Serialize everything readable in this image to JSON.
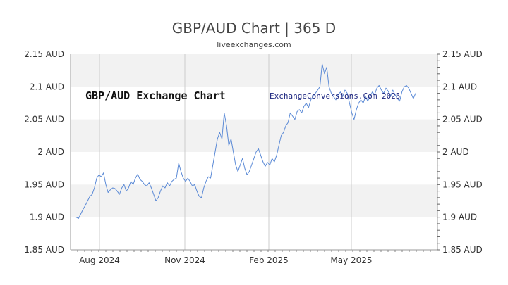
{
  "title": "GBP/AUD Chart | 365 D",
  "subtitle": "liveexchanges.com",
  "watermark_left": "GBP/AUD Exchange Chart",
  "watermark_right": "ExchangeConversions.Com 2025",
  "colors": {
    "line": "#5b8ad6",
    "band": "#f2f2f2",
    "grid": "#cccccc",
    "axis": "#999999"
  },
  "chart_data": {
    "type": "line",
    "title": "GBP/AUD Chart | 365 D",
    "xlabel": "",
    "ylabel": "",
    "ylim": [
      1.85,
      2.15
    ],
    "yticks": [
      1.85,
      1.9,
      1.95,
      2.0,
      2.05,
      2.1,
      2.15
    ],
    "ytick_labels": [
      "1.85 AUD",
      "1.9 AUD",
      "1.95 AUD",
      "2 AUD",
      "2.05 AUD",
      "2.1 AUD",
      "2.15 AUD"
    ],
    "xticks": [
      "Aug 2024",
      "Nov 2024",
      "Feb 2025",
      "May 2025"
    ],
    "grid": true,
    "series": [
      {
        "values": [
          1.9,
          1.898,
          1.905,
          1.912,
          1.918,
          1.925,
          1.932,
          1.935,
          1.945,
          1.96,
          1.965,
          1.962,
          1.968,
          1.95,
          1.938,
          1.942,
          1.945,
          1.944,
          1.94,
          1.935,
          1.945,
          1.95,
          1.94,
          1.945,
          1.955,
          1.95,
          1.96,
          1.966,
          1.958,
          1.955,
          1.95,
          1.948,
          1.953,
          1.945,
          1.935,
          1.925,
          1.93,
          1.94,
          1.948,
          1.945,
          1.953,
          1.948,
          1.955,
          1.958,
          1.96,
          1.983,
          1.97,
          1.96,
          1.955,
          1.96,
          1.955,
          1.948,
          1.95,
          1.94,
          1.932,
          1.93,
          1.945,
          1.955,
          1.962,
          1.96,
          1.98,
          2.0,
          2.02,
          2.03,
          2.02,
          2.06,
          2.04,
          2.01,
          2.02,
          2.0,
          1.98,
          1.97,
          1.98,
          1.99,
          1.975,
          1.965,
          1.97,
          1.98,
          1.99,
          2.0,
          2.005,
          1.995,
          1.985,
          1.978,
          1.984,
          1.98,
          1.99,
          1.985,
          1.995,
          2.01,
          2.025,
          2.03,
          2.04,
          2.045,
          2.06,
          2.055,
          2.05,
          2.062,
          2.065,
          2.06,
          2.07,
          2.075,
          2.068,
          2.08,
          2.085,
          2.09,
          2.095,
          2.1,
          2.135,
          2.12,
          2.13,
          2.1,
          2.09,
          2.085,
          2.08,
          2.088,
          2.092,
          2.085,
          2.095,
          2.09,
          2.075,
          2.06,
          2.05,
          2.065,
          2.075,
          2.08,
          2.075,
          2.085,
          2.078,
          2.085,
          2.092,
          2.088,
          2.098,
          2.102,
          2.095,
          2.09,
          2.098,
          2.093,
          2.085,
          2.095,
          2.088,
          2.082,
          2.078,
          2.092,
          2.1,
          2.102,
          2.098,
          2.09,
          2.082,
          2.09
        ]
      }
    ]
  }
}
